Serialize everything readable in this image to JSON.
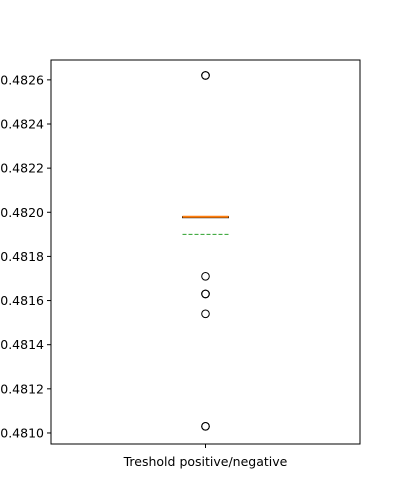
{
  "chart_data": {
    "type": "box",
    "title": "",
    "xlabel": "",
    "ylabel": "",
    "categories": [
      "Treshold positive/negative"
    ],
    "ylim": [
      0.48095,
      0.48269
    ],
    "yticks": [
      0.481,
      0.4812,
      0.4814,
      0.4816,
      0.4818,
      0.482,
      0.4822,
      0.4824,
      0.4826
    ],
    "ytick_labels": [
      "0.4810",
      "0.4812",
      "0.4814",
      "0.4816",
      "0.4818",
      "0.4820",
      "0.4822",
      "0.4824",
      "0.4826"
    ],
    "grid": false,
    "legend": "none",
    "boxes": [
      {
        "label": "Treshold positive/negative",
        "median": 0.48198,
        "q1": 0.48198,
        "q3": 0.48198,
        "whisker_low": 0.48198,
        "whisker_high": 0.48198,
        "mean": 0.4819,
        "fliers": [
          0.48262,
          0.48262,
          0.48171,
          0.48163,
          0.48163,
          0.48154,
          0.48103,
          0.48103
        ]
      }
    ],
    "colors": {
      "median": "#ff7f0e",
      "box": "#000000",
      "mean_line": "#2ca02c",
      "flier_edge": "#000000"
    }
  }
}
